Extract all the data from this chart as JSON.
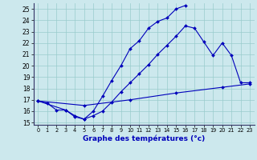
{
  "xlabel": "Graphe des températures (°c)",
  "bg_color": "#cce8ed",
  "grid_color": "#99cccc",
  "line_color": "#0000bb",
  "xlim": [
    -0.5,
    23.5
  ],
  "ylim": [
    14.8,
    25.5
  ],
  "xticks": [
    0,
    1,
    2,
    3,
    4,
    5,
    6,
    7,
    8,
    9,
    10,
    11,
    12,
    13,
    14,
    15,
    16,
    17,
    18,
    19,
    20,
    21,
    22,
    23
  ],
  "yticks": [
    15,
    16,
    17,
    18,
    19,
    20,
    21,
    22,
    23,
    24,
    25
  ],
  "line1_x": [
    0,
    1,
    2,
    3,
    4,
    5,
    6,
    7,
    8,
    9,
    10,
    11,
    12,
    13,
    14,
    15,
    16
  ],
  "line1_y": [
    16.9,
    16.7,
    16.1,
    16.1,
    15.5,
    15.3,
    16.0,
    17.3,
    18.7,
    20.0,
    21.5,
    22.2,
    23.3,
    23.9,
    24.2,
    25.0,
    25.3
  ],
  "line2_x": [
    0,
    3,
    4,
    5,
    6,
    7,
    8,
    9,
    10,
    11,
    12,
    13,
    14,
    15,
    16,
    17,
    18,
    19,
    20,
    21,
    22,
    23
  ],
  "line2_y": [
    16.9,
    16.1,
    15.6,
    15.3,
    15.6,
    16.0,
    16.8,
    17.7,
    18.5,
    19.3,
    20.1,
    21.0,
    21.8,
    22.6,
    23.5,
    23.3,
    22.1,
    20.9,
    22.0,
    20.9,
    18.5,
    18.5
  ],
  "line3_x": [
    0,
    5,
    10,
    15,
    20,
    23
  ],
  "line3_y": [
    16.9,
    16.5,
    17.0,
    17.6,
    18.1,
    18.4
  ]
}
